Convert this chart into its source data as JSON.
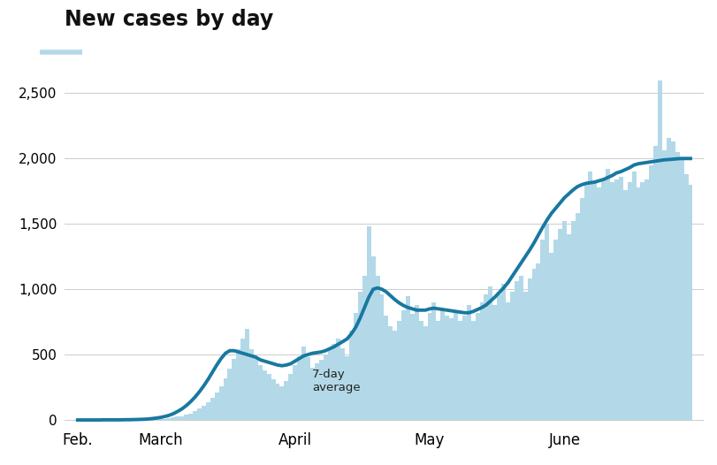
{
  "title": "New cases by day",
  "title_fontsize": 17,
  "title_fontweight": "bold",
  "bar_color": "#b3d9e8",
  "line_color": "#1878a0",
  "line_width": 2.8,
  "annotation_text": "7-day\naverage",
  "ylabel_ticks": [
    0,
    500,
    1000,
    1500,
    2000,
    2500
  ],
  "ylim": [
    -60,
    2750
  ],
  "background_color": "#ffffff",
  "legend_color": "#b3d9e8",
  "bar_cases": [
    1,
    0,
    1,
    0,
    0,
    1,
    0,
    2,
    1,
    0,
    1,
    2,
    1,
    3,
    2,
    4,
    3,
    5,
    8,
    6,
    10,
    14,
    18,
    25,
    30,
    38,
    50,
    65,
    85,
    110,
    135,
    170,
    210,
    260,
    320,
    390,
    470,
    540,
    620,
    700,
    540,
    480,
    420,
    380,
    350,
    310,
    280,
    260,
    300,
    350,
    420,
    490,
    560,
    480,
    400,
    430,
    460,
    500,
    540,
    580,
    620,
    550,
    490,
    680,
    820,
    980,
    1100,
    1480,
    1250,
    1100,
    960,
    800,
    720,
    680,
    760,
    840,
    950,
    810,
    880,
    760,
    720,
    820,
    900,
    760,
    840,
    800,
    780,
    840,
    760,
    800,
    880,
    760,
    820,
    900,
    960,
    1020,
    880,
    960,
    1040,
    900,
    980,
    1060,
    1100,
    980,
    1080,
    1160,
    1200,
    1380,
    1500,
    1280,
    1380,
    1460,
    1520,
    1420,
    1520,
    1580,
    1700,
    1820,
    1900,
    1820,
    1780,
    1840,
    1920,
    1820,
    1840,
    1860,
    1760,
    1820,
    1900,
    1780,
    1820,
    1840,
    1950,
    2100,
    2600,
    2060,
    2160,
    2130,
    2050,
    2000,
    1880,
    1800
  ],
  "avg_cases": [
    0,
    0,
    0,
    0,
    0,
    0,
    1,
    1,
    1,
    1,
    1,
    2,
    2,
    3,
    4,
    5,
    7,
    10,
    14,
    19,
    26,
    35,
    48,
    65,
    85,
    110,
    140,
    175,
    215,
    260,
    310,
    365,
    420,
    470,
    510,
    530,
    530,
    520,
    510,
    500,
    490,
    480,
    460,
    450,
    440,
    430,
    420,
    415,
    420,
    430,
    450,
    470,
    490,
    500,
    510,
    515,
    520,
    530,
    545,
    560,
    580,
    600,
    620,
    660,
    710,
    780,
    860,
    940,
    1000,
    1010,
    1000,
    980,
    950,
    920,
    895,
    875,
    860,
    850,
    840,
    840,
    840,
    850,
    855,
    850,
    845,
    840,
    835,
    830,
    825,
    820,
    820,
    830,
    845,
    860,
    880,
    910,
    940,
    975,
    1010,
    1050,
    1100,
    1150,
    1200,
    1250,
    1300,
    1355,
    1415,
    1475,
    1530,
    1580,
    1620,
    1660,
    1700,
    1730,
    1760,
    1785,
    1800,
    1810,
    1815,
    1820,
    1830,
    1840,
    1855,
    1870,
    1890,
    1900,
    1915,
    1930,
    1950,
    1960,
    1965,
    1970,
    1975,
    1980,
    1985,
    1990,
    1992,
    1995,
    1998,
    2000,
    2000,
    2000
  ],
  "month_tick_positions": [
    0,
    19,
    50,
    81,
    112
  ],
  "month_labels": [
    "Feb.",
    "March",
    "April",
    "May",
    "June"
  ]
}
